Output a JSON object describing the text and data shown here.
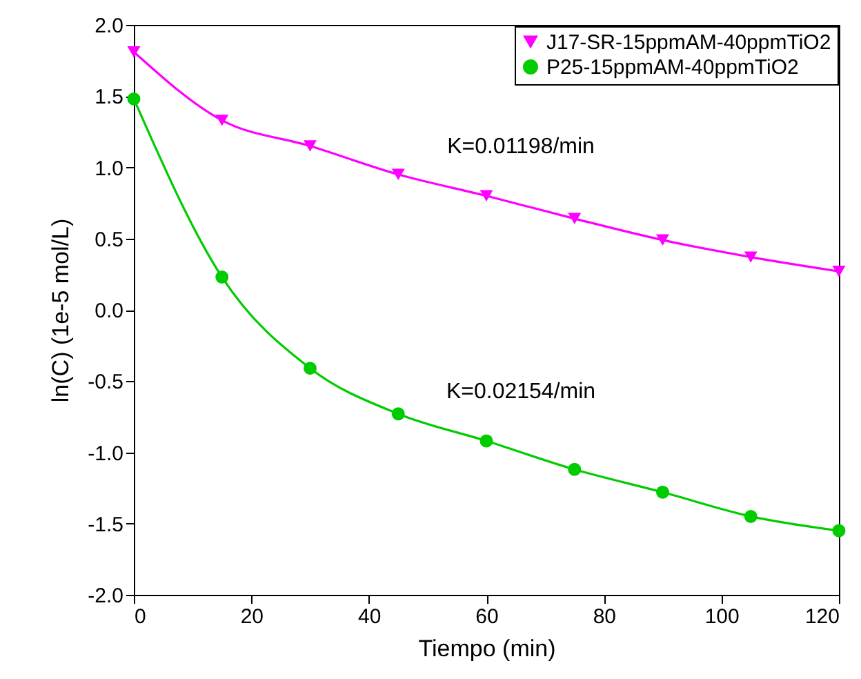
{
  "chart_data": {
    "type": "line",
    "xlabel": "Tiempo (min)",
    "ylabel": "ln(C) (1e-5 mol/L)",
    "x": [
      0,
      15,
      30,
      45,
      60,
      75,
      90,
      105,
      120
    ],
    "series": [
      {
        "name": "J17-SR-15ppmAM-40ppmTiO2",
        "color": "#ff00ff",
        "marker": "triangle",
        "values": [
          1.81,
          1.33,
          1.15,
          0.95,
          0.8,
          0.64,
          0.49,
          0.37,
          0.27
        ]
      },
      {
        "name": "P25-15ppmAM-40ppmTiO2",
        "color": "#00cc00",
        "marker": "circle",
        "values": [
          1.48,
          0.23,
          -0.41,
          -0.73,
          -0.92,
          -1.12,
          -1.28,
          -1.45,
          -1.55
        ]
      }
    ],
    "annotations": [
      "K=0.01198/min",
      "K=0.02154/min"
    ],
    "xlim": [
      0,
      120
    ],
    "xticks": [
      0,
      20,
      40,
      60,
      80,
      100,
      120
    ],
    "ylim": [
      -2,
      2
    ],
    "yticks": [
      {
        "value": -2,
        "label": "-2.0"
      },
      {
        "value": -1.5,
        "label": "-1.5"
      },
      {
        "value": -1,
        "label": "-1.0"
      },
      {
        "value": -0.5,
        "label": "-0.5"
      },
      {
        "value": 0,
        "label": "0.0"
      },
      {
        "value": 0.5,
        "label": "0.5"
      },
      {
        "value": 1,
        "label": "1.0"
      },
      {
        "value": 1.5,
        "label": "1.5"
      },
      {
        "value": 2,
        "label": "2.0"
      }
    ],
    "grid": false,
    "legend": "top right"
  }
}
